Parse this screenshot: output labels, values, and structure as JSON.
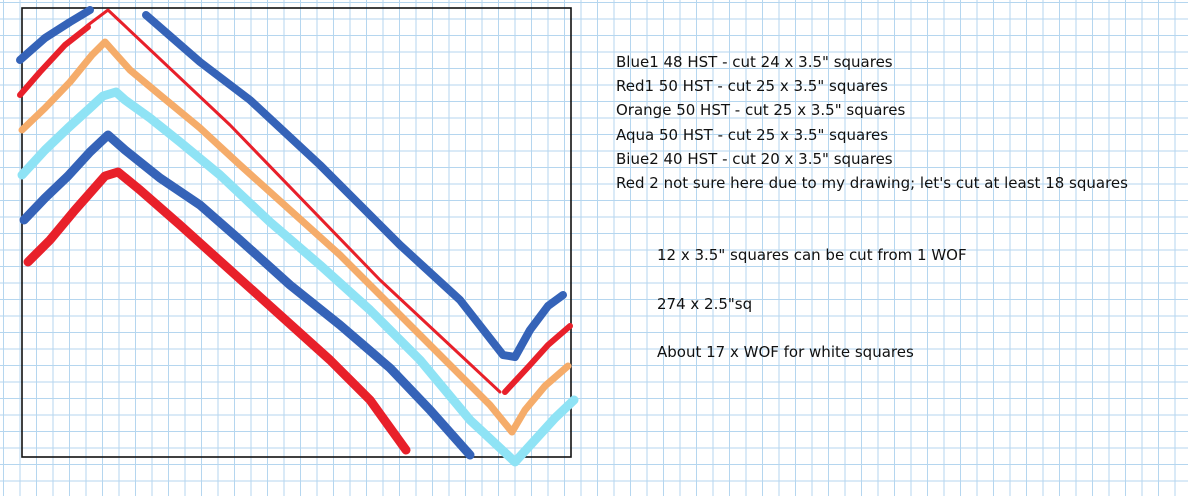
{
  "cut_list": [
    "Blue1 48 HST - cut 24 x 3.5\" squares",
    "Red1 50 HST - cut 25 x 3.5\" squares",
    "Orange 50 HST - cut 25 x 3.5\" squares",
    "Aqua 50 HST - cut 25 x 3.5\" squares",
    "Biue2 40 HST - cut 20 x 3.5\" squares",
    "Red 2 not sure here due to my drawing; let's cut at least 18 squares"
  ],
  "notes": {
    "wof_squares": "12 x 3.5\" squares can be cut from 1 WOF",
    "small_squares": "274 x 2.5\"sq",
    "white_wof": "About 17 x WOF for white squares"
  },
  "colors": {
    "blue": "#3563b8",
    "red": "#e8202a",
    "orange": "#f5ac6a",
    "aqua": "#8fe3f5",
    "grid": "#b5d6ef"
  },
  "diagram": {
    "stripes": [
      "Blue1",
      "Red1",
      "Orange",
      "Aqua",
      "Biue2",
      "Red 2"
    ]
  }
}
